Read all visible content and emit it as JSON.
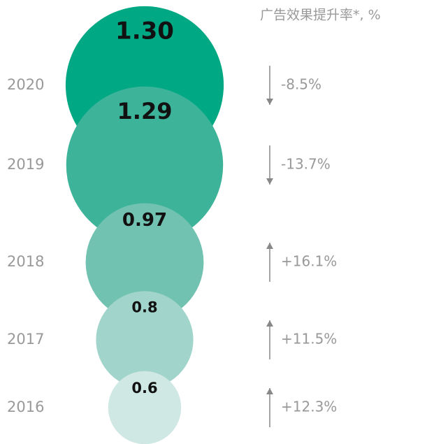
{
  "chart_data": {
    "type": "bubble",
    "title": "广告效果提升率*, %",
    "categories": [
      "2020",
      "2019",
      "2018",
      "2017",
      "2016"
    ],
    "values": [
      1.3,
      1.29,
      0.97,
      0.8,
      0.6
    ],
    "value_labels": [
      "1.30",
      "1.29",
      "0.97",
      "0.8",
      "0.6"
    ],
    "colors": [
      "#00a884",
      "#3db39a",
      "#72c2b2",
      "#a1d4ca",
      "#cfe8e3"
    ],
    "change": {
      "values": [
        -8.5,
        -13.7,
        16.1,
        11.5,
        12.3
      ],
      "value_labels": [
        "-8.5%",
        "-13.7%",
        "+16.1%",
        "+11.5%",
        "+12.3%"
      ]
    }
  }
}
